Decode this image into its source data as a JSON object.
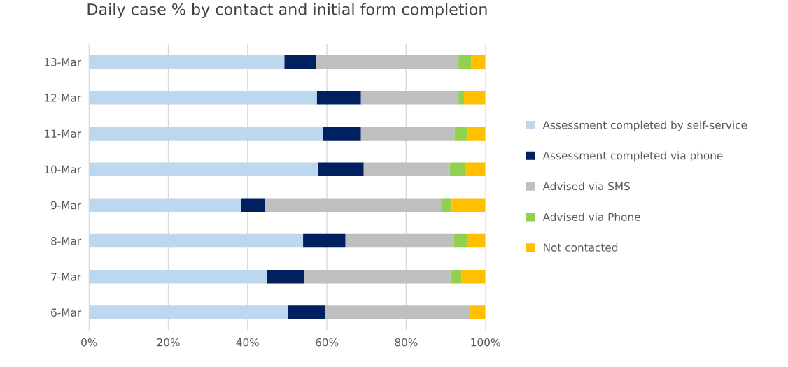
{
  "chart_data": {
    "type": "bar",
    "orientation": "horizontal",
    "stacked": true,
    "title": "Daily case % by contact and initial form completion",
    "categories": [
      "13-Mar",
      "12-Mar",
      "11-Mar",
      "10-Mar",
      "9-Mar",
      "8-Mar",
      "7-Mar",
      "6-Mar"
    ],
    "series": [
      {
        "name": "Assessment completed by self-service",
        "color": "#bdd7ee",
        "values": [
          49.3,
          57.5,
          59.0,
          57.7,
          38.4,
          54.0,
          44.9,
          50.2
        ]
      },
      {
        "name": "Assessment completed via phone",
        "color": "#002060",
        "values": [
          8.0,
          11.1,
          9.6,
          11.6,
          6.0,
          10.7,
          9.4,
          9.3
        ]
      },
      {
        "name": "Advised via SMS",
        "color": "#bfbfbf",
        "values": [
          35.9,
          24.6,
          23.6,
          21.7,
          44.4,
          27.3,
          36.9,
          36.6
        ]
      },
      {
        "name": "Advised via Phone",
        "color": "#92d050",
        "values": [
          3.3,
          1.4,
          3.3,
          3.8,
          2.7,
          3.3,
          2.7,
          0
        ]
      },
      {
        "name": "Not contacted",
        "color": "#ffc000",
        "values": [
          3.5,
          5.4,
          4.5,
          5.2,
          8.5,
          4.7,
          6.1,
          3.9
        ]
      }
    ],
    "xlim": [
      0,
      100
    ],
    "xticks": [
      {
        "value": 0,
        "label": "0%"
      },
      {
        "value": 20,
        "label": "20%"
      },
      {
        "value": 40,
        "label": "40%"
      },
      {
        "value": 60,
        "label": "60%"
      },
      {
        "value": 80,
        "label": "80%"
      },
      {
        "value": 100,
        "label": "100%"
      }
    ],
    "grid": "x",
    "legend": "right"
  }
}
